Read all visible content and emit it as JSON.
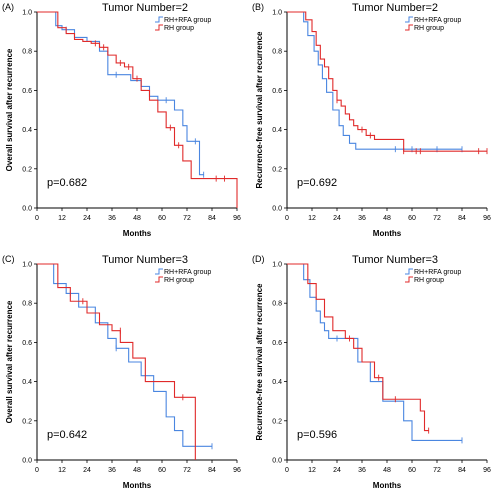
{
  "colors": {
    "rfa": "#4a86e0",
    "rh": "#e02a2a"
  },
  "chart_data": [
    {
      "type": "line",
      "panel_label": "(A)",
      "title": "Tumor Number=2",
      "xlabel": "Months",
      "ylabel": "Overall survival after recurrence",
      "xlim": [
        0,
        96
      ],
      "ylim": [
        0,
        1.0
      ],
      "xticks": [
        0,
        12,
        24,
        36,
        48,
        60,
        72,
        84,
        96
      ],
      "yticks": [
        0.0,
        0.2,
        0.4,
        0.6,
        0.8,
        1.0
      ],
      "legend_position": "top-right",
      "pvalue": "p=0.682",
      "series": [
        {
          "name": "RH+RFA group",
          "color_key": "rfa",
          "steps": [
            [
              0,
              1.0
            ],
            [
              9,
              0.93
            ],
            [
              12,
              0.91
            ],
            [
              18,
              0.87
            ],
            [
              24,
              0.85
            ],
            [
              30,
              0.8
            ],
            [
              34,
              0.68
            ],
            [
              45,
              0.65
            ],
            [
              50,
              0.62
            ],
            [
              54,
              0.57
            ],
            [
              58,
              0.55
            ],
            [
              66,
              0.5
            ],
            [
              70,
              0.42
            ],
            [
              72,
              0.34
            ],
            [
              78,
              0.17
            ],
            [
              80,
              0.17
            ]
          ],
          "censored": [
            [
              14,
              0.91
            ],
            [
              30,
              0.82
            ],
            [
              38,
              0.68
            ],
            [
              62,
              0.55
            ],
            [
              76,
              0.34
            ],
            [
              80,
              0.17
            ]
          ]
        },
        {
          "name": "RH group",
          "color_key": "rh",
          "steps": [
            [
              0,
              1.0
            ],
            [
              10,
              0.92
            ],
            [
              14,
              0.89
            ],
            [
              18,
              0.86
            ],
            [
              22,
              0.85
            ],
            [
              26,
              0.84
            ],
            [
              30,
              0.82
            ],
            [
              34,
              0.78
            ],
            [
              38,
              0.74
            ],
            [
              42,
              0.72
            ],
            [
              46,
              0.66
            ],
            [
              50,
              0.6
            ],
            [
              54,
              0.55
            ],
            [
              58,
              0.49
            ],
            [
              62,
              0.41
            ],
            [
              66,
              0.32
            ],
            [
              70,
              0.24
            ],
            [
              74,
              0.15
            ],
            [
              96,
              0.15
            ],
            [
              96,
              0.0
            ]
          ],
          "censored": [
            [
              28,
              0.84
            ],
            [
              32,
              0.82
            ],
            [
              40,
              0.74
            ],
            [
              44,
              0.72
            ],
            [
              48,
              0.66
            ],
            [
              64,
              0.41
            ],
            [
              68,
              0.32
            ],
            [
              86,
              0.15
            ],
            [
              90,
              0.15
            ]
          ]
        }
      ]
    },
    {
      "type": "line",
      "panel_label": "(B)",
      "title": "Tumor Number=2",
      "xlabel": "Months",
      "ylabel": "Recurrence-free survival after recurrence",
      "xlim": [
        0,
        96
      ],
      "ylim": [
        0,
        1.0
      ],
      "xticks": [
        0,
        12,
        24,
        36,
        48,
        60,
        72,
        84,
        96
      ],
      "yticks": [
        0.0,
        0.2,
        0.4,
        0.6,
        0.8,
        1.0
      ],
      "legend_position": "top-right",
      "pvalue": "p=0.692",
      "series": [
        {
          "name": "RH+RFA group",
          "color_key": "rfa",
          "steps": [
            [
              0,
              1.0
            ],
            [
              8,
              0.95
            ],
            [
              10,
              0.88
            ],
            [
              13,
              0.8
            ],
            [
              15,
              0.73
            ],
            [
              17,
              0.66
            ],
            [
              19,
              0.59
            ],
            [
              22,
              0.5
            ],
            [
              25,
              0.42
            ],
            [
              27,
              0.37
            ],
            [
              30,
              0.33
            ],
            [
              33,
              0.3
            ],
            [
              84,
              0.3
            ]
          ],
          "censored": [
            [
              52,
              0.3
            ],
            [
              60,
              0.3
            ],
            [
              72,
              0.3
            ],
            [
              84,
              0.3
            ]
          ]
        },
        {
          "name": "RH group",
          "color_key": "rh",
          "steps": [
            [
              0,
              1.0
            ],
            [
              9,
              0.96
            ],
            [
              12,
              0.9
            ],
            [
              14,
              0.83
            ],
            [
              16,
              0.76
            ],
            [
              18,
              0.72
            ],
            [
              20,
              0.66
            ],
            [
              22,
              0.6
            ],
            [
              24,
              0.55
            ],
            [
              26,
              0.52
            ],
            [
              28,
              0.48
            ],
            [
              30,
              0.45
            ],
            [
              32,
              0.42
            ],
            [
              34,
              0.4
            ],
            [
              38,
              0.37
            ],
            [
              42,
              0.35
            ],
            [
              56,
              0.29
            ],
            [
              96,
              0.29
            ]
          ],
          "censored": [
            [
              24,
              0.55
            ],
            [
              36,
              0.4
            ],
            [
              40,
              0.37
            ],
            [
              56,
              0.29
            ],
            [
              62,
              0.29
            ],
            [
              64,
              0.29
            ],
            [
              92,
              0.29
            ],
            [
              96,
              0.29
            ]
          ]
        }
      ]
    },
    {
      "type": "line",
      "panel_label": "(C)",
      "title": "Tumor Number=3",
      "xlabel": "Months",
      "ylabel": "Overall survival after recurrence",
      "xlim": [
        0,
        96
      ],
      "ylim": [
        0,
        1.0
      ],
      "xticks": [
        0,
        12,
        24,
        36,
        48,
        60,
        72,
        84,
        96
      ],
      "yticks": [
        0.0,
        0.2,
        0.4,
        0.6,
        0.8,
        1.0
      ],
      "legend_position": "top-right",
      "pvalue": "p=0.642",
      "series": [
        {
          "name": "RH+RFA group",
          "color_key": "rfa",
          "steps": [
            [
              0,
              1.0
            ],
            [
              8,
              0.9
            ],
            [
              14,
              0.85
            ],
            [
              20,
              0.78
            ],
            [
              28,
              0.7
            ],
            [
              34,
              0.62
            ],
            [
              38,
              0.57
            ],
            [
              44,
              0.5
            ],
            [
              50,
              0.43
            ],
            [
              56,
              0.35
            ],
            [
              62,
              0.22
            ],
            [
              66,
              0.15
            ],
            [
              70,
              0.07
            ],
            [
              84,
              0.07
            ]
          ],
          "censored": [
            [
              16,
              0.85
            ],
            [
              38,
              0.57
            ],
            [
              84,
              0.07
            ]
          ]
        },
        {
          "name": "RH group",
          "color_key": "rh",
          "steps": [
            [
              0,
              1.0
            ],
            [
              10,
              0.88
            ],
            [
              16,
              0.81
            ],
            [
              24,
              0.75
            ],
            [
              30,
              0.69
            ],
            [
              36,
              0.66
            ],
            [
              40,
              0.6
            ],
            [
              46,
              0.52
            ],
            [
              52,
              0.4
            ],
            [
              66,
              0.32
            ],
            [
              74,
              0.32
            ],
            [
              76,
              0.0
            ]
          ],
          "censored": [
            [
              22,
              0.81
            ],
            [
              40,
              0.66
            ],
            [
              70,
              0.32
            ]
          ]
        }
      ]
    },
    {
      "type": "line",
      "panel_label": "(D)",
      "title": "Tumor Number=3",
      "xlabel": "Months",
      "ylabel": "Recurrence-free survival after recurrence",
      "xlim": [
        0,
        96
      ],
      "ylim": [
        0,
        1.0
      ],
      "xticks": [
        0,
        12,
        24,
        36,
        48,
        60,
        72,
        84,
        96
      ],
      "yticks": [
        0.0,
        0.2,
        0.4,
        0.6,
        0.8,
        1.0
      ],
      "legend_position": "top-right",
      "pvalue": "p=0.596",
      "series": [
        {
          "name": "RH+RFA group",
          "color_key": "rfa",
          "steps": [
            [
              0,
              1.0
            ],
            [
              8,
              0.92
            ],
            [
              11,
              0.83
            ],
            [
              14,
              0.76
            ],
            [
              16,
              0.7
            ],
            [
              18,
              0.66
            ],
            [
              20,
              0.62
            ],
            [
              34,
              0.5
            ],
            [
              40,
              0.4
            ],
            [
              46,
              0.3
            ],
            [
              56,
              0.2
            ],
            [
              60,
              0.1
            ],
            [
              84,
              0.1
            ]
          ],
          "censored": [
            [
              24,
              0.62
            ],
            [
              84,
              0.1
            ]
          ]
        },
        {
          "name": "RH group",
          "color_key": "rh",
          "steps": [
            [
              0,
              1.0
            ],
            [
              10,
              0.9
            ],
            [
              14,
              0.82
            ],
            [
              18,
              0.73
            ],
            [
              22,
              0.66
            ],
            [
              28,
              0.62
            ],
            [
              32,
              0.57
            ],
            [
              36,
              0.5
            ],
            [
              42,
              0.42
            ],
            [
              46,
              0.31
            ],
            [
              58,
              0.31
            ],
            [
              64,
              0.25
            ],
            [
              66,
              0.15
            ],
            [
              68,
              0.15
            ]
          ],
          "censored": [
            [
              30,
              0.62
            ],
            [
              44,
              0.42
            ],
            [
              52,
              0.31
            ],
            [
              68,
              0.15
            ]
          ]
        }
      ]
    }
  ]
}
